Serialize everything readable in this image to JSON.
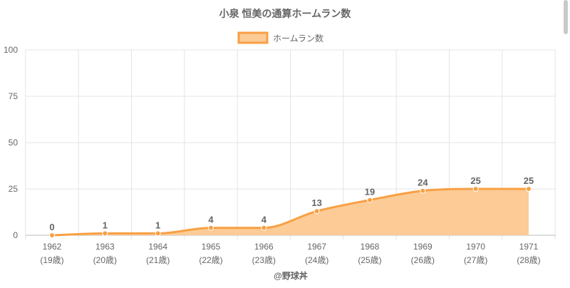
{
  "chart_data": {
    "type": "area",
    "title": "小泉 恒美の通算ホームラン数",
    "x": [
      "1962",
      "1963",
      "1964",
      "1965",
      "1966",
      "1967",
      "1968",
      "1969",
      "1970",
      "1971"
    ],
    "x_sublabels": [
      "(19歳)",
      "(20歳)",
      "(21歳)",
      "(22歳)",
      "(23歳)",
      "(24歳)",
      "(25歳)",
      "(26歳)",
      "(27歳)",
      "(28歳)"
    ],
    "series": [
      {
        "name": "ホームラン数",
        "values": [
          0,
          1,
          1,
          4,
          4,
          13,
          19,
          24,
          25,
          25
        ],
        "line_color": "#f8a044",
        "fill_color": "#fccb96"
      }
    ],
    "yticks": [
      0,
      25,
      50,
      75,
      100
    ],
    "ylim": [
      0,
      100
    ],
    "grid": true,
    "legend": "top-center",
    "credit": "@野球丼"
  }
}
